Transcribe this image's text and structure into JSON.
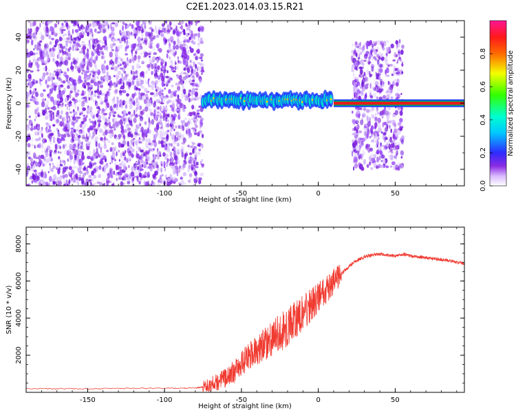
{
  "figure_title": "C2E1.2023.014.03.15.R21",
  "colors": {
    "snr_line": "#f03a30",
    "spectrum_sparse": "#8a2be2",
    "trace_band": "#e02424",
    "axes": "#000000"
  },
  "chart_data": [
    {
      "type": "heatmap",
      "title": "",
      "xlabel": "Height of straight line (km)",
      "ylabel": "Frequency (Hz)",
      "xlim": [
        -190,
        95
      ],
      "ylim": [
        -50,
        50
      ],
      "xticks": [
        -150,
        -100,
        -50,
        0,
        50
      ],
      "yticks": [
        -40,
        -20,
        0,
        20,
        40
      ],
      "colorbar": {
        "label": "Normalized spectral amplitude",
        "range": [
          0.0,
          1.0
        ],
        "ticks": [
          0.0,
          0.2,
          0.4,
          0.6,
          0.8
        ],
        "tick_labels": [
          "0.0",
          "0.2",
          "0.4",
          "0.6",
          "0.8"
        ],
        "colormap": "rainbow (white-violet-blue-cyan-green-yellow-red-magenta)"
      },
      "regions": [
        {
          "name": "diffuse noise",
          "x": [
            -190,
            -75
          ],
          "freq_range": [
            -50,
            50
          ],
          "amplitude": 0.1
        },
        {
          "name": "coherent echo",
          "x": [
            -75,
            10
          ],
          "freq_center": 1.5,
          "freq_halfwidth": 4,
          "amplitude": 0.6
        },
        {
          "name": "scattered noise",
          "x": [
            22,
            55
          ],
          "freq_range": [
            -40,
            38
          ],
          "amplitude": 0.12
        },
        {
          "name": "steady signal",
          "x": [
            10,
            95
          ],
          "freq_center": 0,
          "freq_halfwidth": 1.5,
          "amplitude": 0.95
        }
      ]
    },
    {
      "type": "line",
      "title": "",
      "xlabel": "Height of straight line (km)",
      "ylabel": "SNR (10 * v/v)",
      "xlim": [
        -190,
        95
      ],
      "ylim": [
        0,
        8900
      ],
      "xticks": [
        -150,
        -100,
        -50,
        0,
        50
      ],
      "yticks": [
        2000,
        4000,
        6000,
        8000
      ],
      "series": [
        {
          "name": "",
          "x": [
            -190,
            -150,
            -100,
            -80,
            -75,
            -70,
            -65,
            -60,
            -55,
            -50,
            -45,
            -40,
            -35,
            -30,
            -25,
            -20,
            -15,
            -10,
            -5,
            0,
            5,
            10,
            15,
            20,
            25,
            30,
            35,
            40,
            45,
            50,
            55,
            60,
            65,
            70,
            75,
            80,
            85,
            90,
            95
          ],
          "y": [
            200,
            200,
            220,
            230,
            300,
            400,
            600,
            800,
            1100,
            1500,
            2000,
            2300,
            2600,
            2900,
            3200,
            3500,
            3900,
            4300,
            4700,
            5100,
            5500,
            6000,
            6400,
            6800,
            7100,
            7300,
            7400,
            7450,
            7400,
            7350,
            7450,
            7350,
            7300,
            7250,
            7200,
            7150,
            7100,
            7000,
            6950
          ]
        }
      ]
    }
  ]
}
